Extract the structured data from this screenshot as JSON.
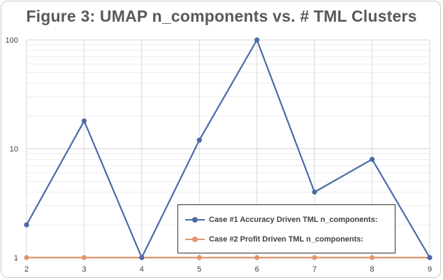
{
  "chart_data": {
    "type": "line",
    "title": "Figure 3: UMAP n_components vs. # TML Clusters",
    "x": [
      2,
      3,
      4,
      5,
      6,
      7,
      8,
      9
    ],
    "y_scale": "log",
    "ylim": [
      1,
      100
    ],
    "y_ticks": [
      "1",
      "10",
      "100"
    ],
    "grid": true,
    "legend_position": "bottom-right",
    "series": [
      {
        "name": "Case #1 Accuracy Driven TML n_components:",
        "values": [
          2,
          18,
          1,
          12,
          100,
          4,
          8,
          1
        ],
        "color": "#4a6aa5"
      },
      {
        "name": "Case #2 Profit Driven TML n_components:",
        "values": [
          1,
          1,
          1,
          1,
          1,
          1,
          1,
          1
        ],
        "color": "#e0956a"
      }
    ]
  }
}
